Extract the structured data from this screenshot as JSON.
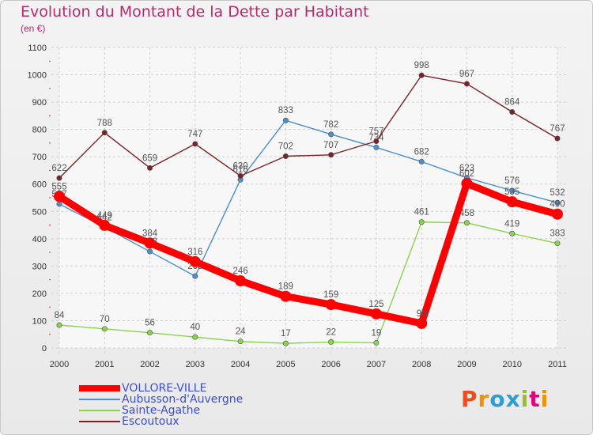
{
  "header": {
    "title": "Evolution du Montant de la Dette par Habitant",
    "unit": "(en €)"
  },
  "logo": {
    "text": "Proxiti",
    "colors": [
      "#e94e1b",
      "#f39200",
      "#2a9fd6",
      "#2a9fd6",
      "#95c11f",
      "#e6007e",
      "#f39200"
    ]
  },
  "colors": {
    "title": "#c0266e",
    "legend_text": "#3b4de0",
    "grid": "#d0d0d0",
    "axis_text": "#333333"
  },
  "chart_data": {
    "type": "line",
    "title": "Evolution du Montant de la Dette par Habitant",
    "ylabel": "(en €)",
    "xlabel": "",
    "ylim": [
      0,
      1100
    ],
    "yticks": [
      0,
      100,
      200,
      300,
      400,
      500,
      600,
      700,
      800,
      900,
      1000,
      1100
    ],
    "grid": true,
    "legend_position": "bottom-left",
    "x": [
      "2000",
      "2001",
      "2002",
      "2003",
      "2004",
      "2005",
      "2006",
      "2007",
      "2008",
      "2009",
      "2010",
      "2011"
    ],
    "series": [
      {
        "name": "VOLLORE-VILLE",
        "color": "#ff0000",
        "values": [
          555,
          449,
          384,
          316,
          246,
          189,
          159,
          125,
          90,
          602,
          535,
          490
        ]
      },
      {
        "name": "Aubusson-d'Auvergne",
        "color": "#4a8fcf",
        "values": [
          527,
          442,
          353,
          263,
          616,
          833,
          782,
          734,
          682,
          623,
          576,
          532
        ]
      },
      {
        "name": "Sainte-Agathe",
        "color": "#8ad44a",
        "values": [
          84,
          70,
          56,
          40,
          24,
          17,
          22,
          19,
          461,
          458,
          419,
          383
        ]
      },
      {
        "name": "Escoutoux",
        "color": "#7a2228",
        "values": [
          622,
          788,
          659,
          747,
          630,
          702,
          707,
          757,
          998,
          967,
          864,
          767
        ]
      }
    ]
  }
}
